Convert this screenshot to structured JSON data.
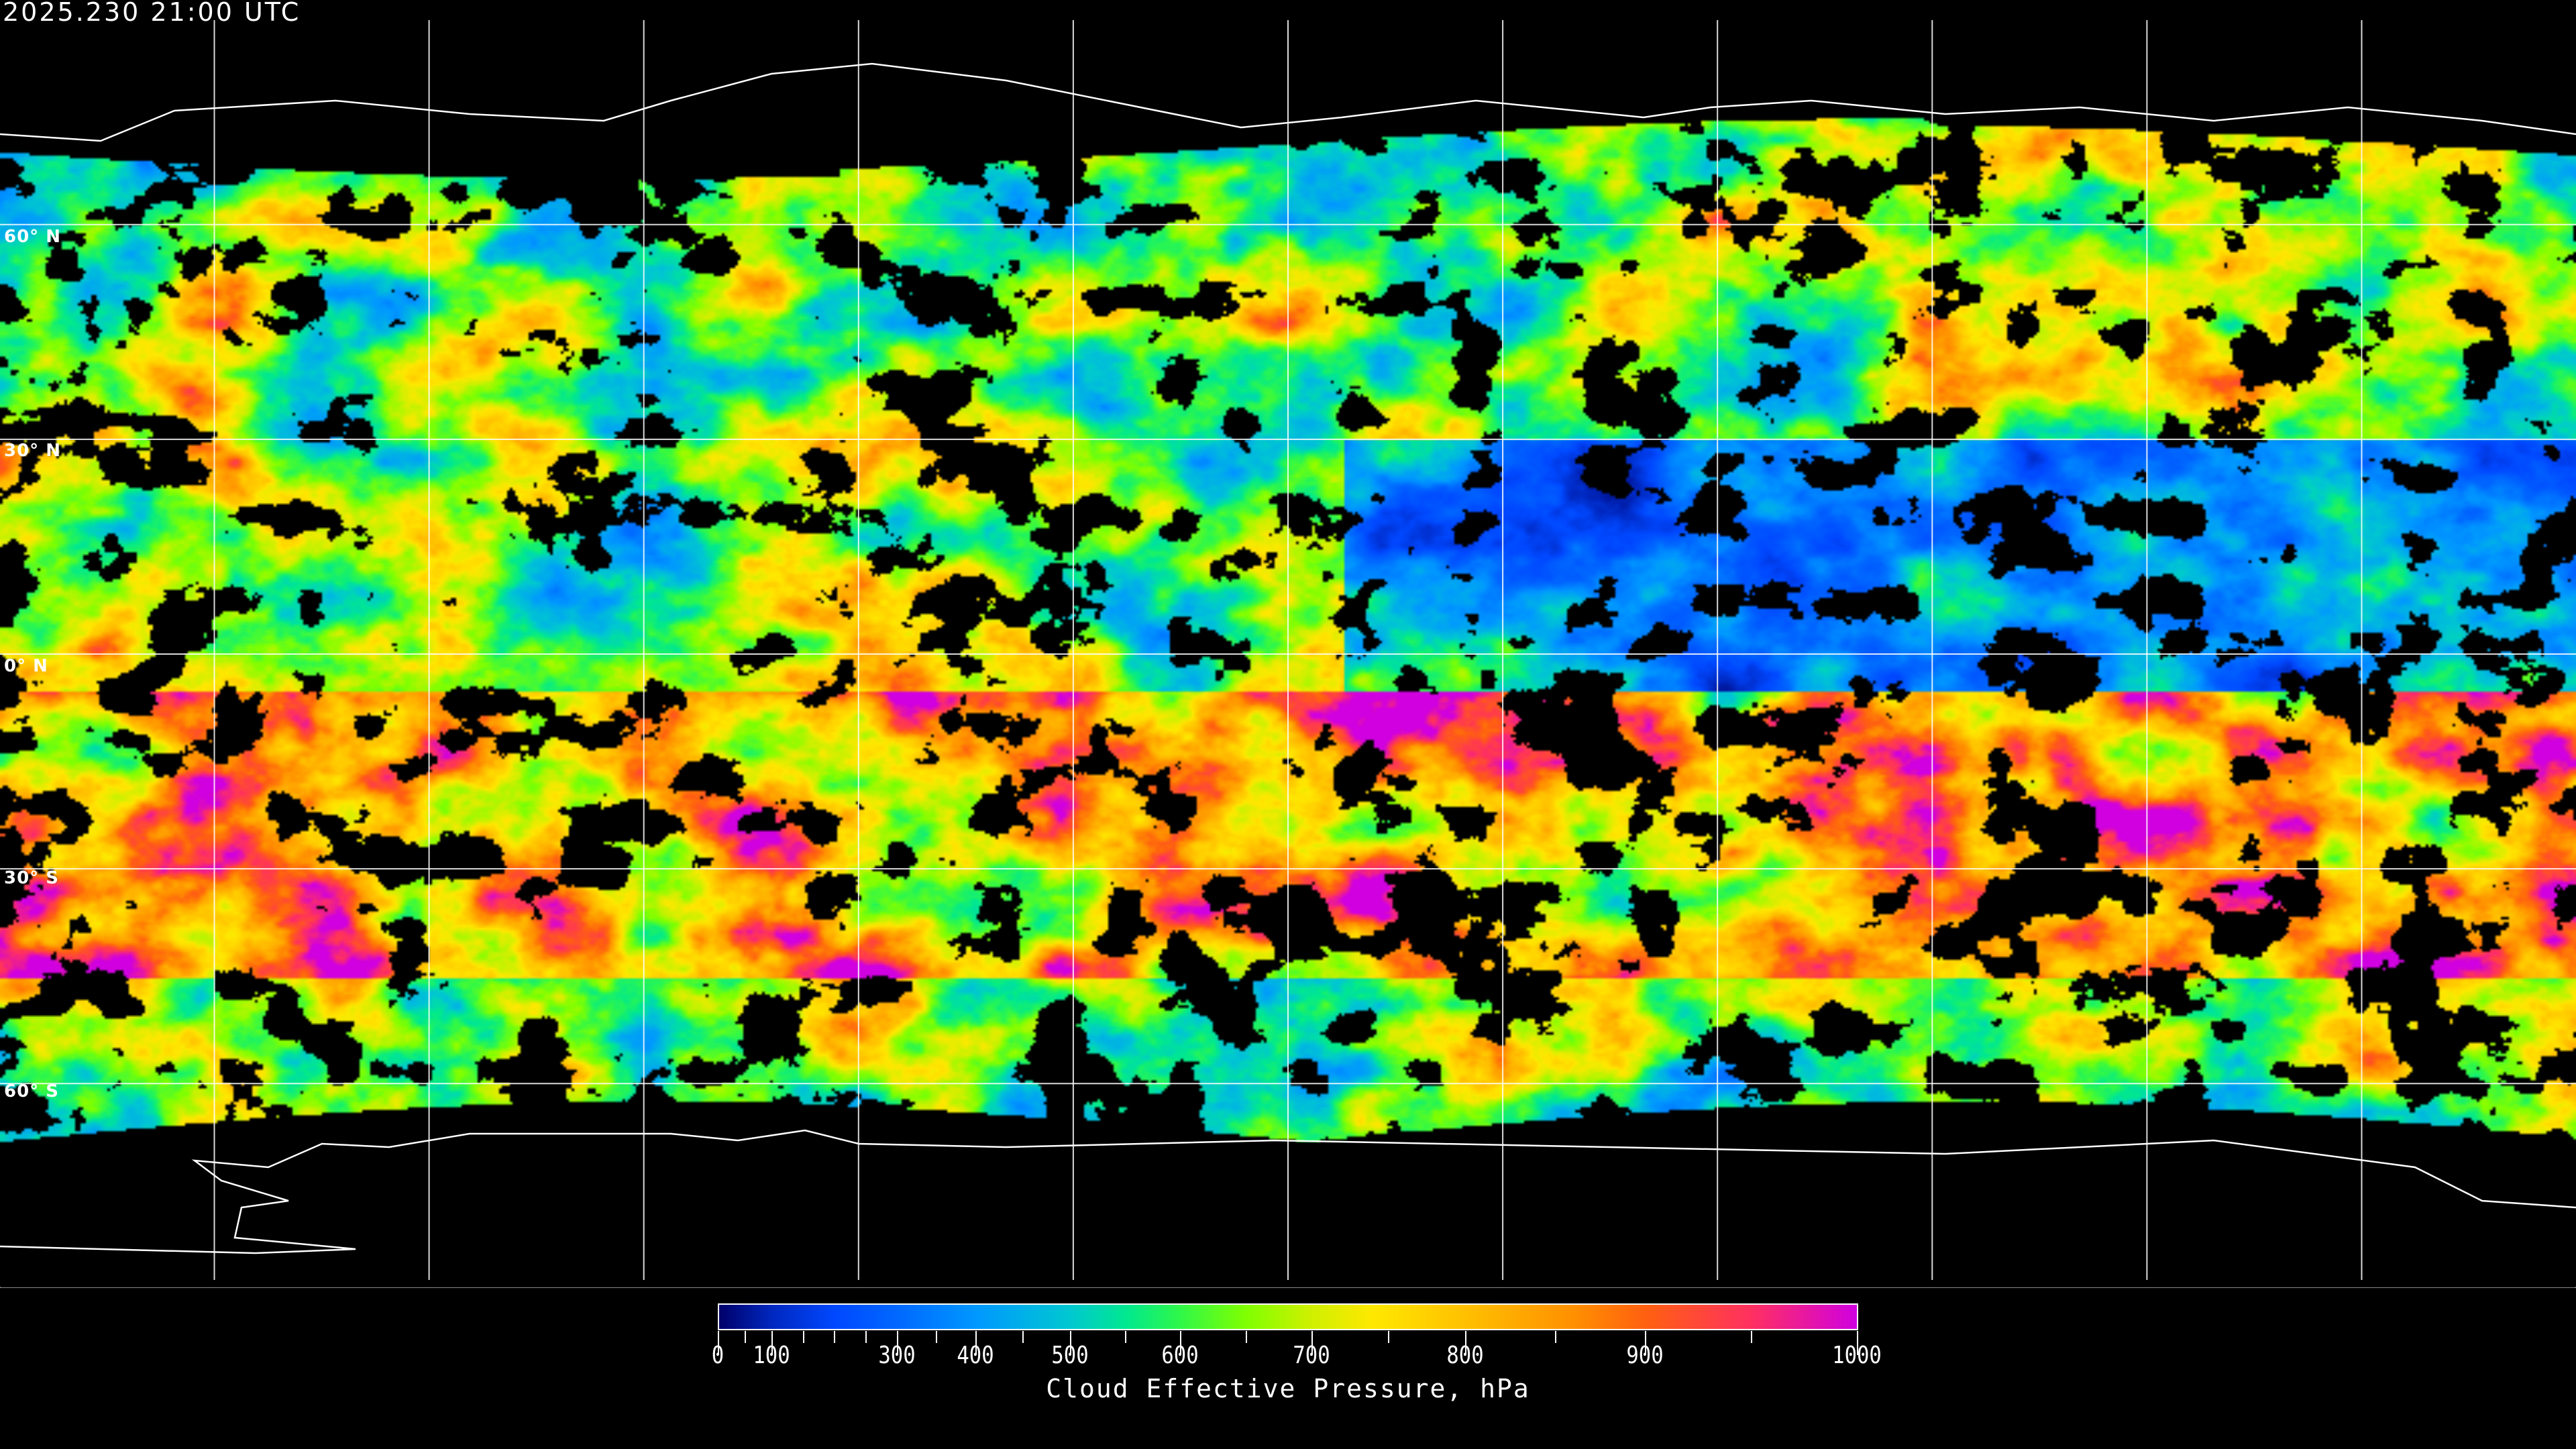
{
  "header": {
    "timestamp": "2025.230 21:00 UTC"
  },
  "map": {
    "projection": "equirectangular",
    "lat_labels": [
      "60° N",
      "30° N",
      "0° N",
      "30° S",
      "60° S"
    ],
    "lat_values": [
      60,
      30,
      0,
      -30,
      -60
    ],
    "lon_gridlines_deg": [
      -150,
      -120,
      -90,
      -60,
      -30,
      0,
      30,
      60,
      90,
      120,
      150
    ],
    "background_color": "#000000",
    "coastline_color": "#ffffff",
    "gridline_color": "#ffffff",
    "no_cloud_color": "#000000"
  },
  "colorbar": {
    "title": "Cloud Effective Pressure, hPa",
    "tick_labels": [
      "0",
      "100",
      "300",
      "400",
      "500",
      "600",
      "700",
      "800",
      "900",
      "1000"
    ],
    "tick_values": [
      0,
      100,
      300,
      400,
      500,
      600,
      700,
      800,
      900,
      1000
    ],
    "range": [
      0,
      1000
    ],
    "color_stops": [
      {
        "value": 0,
        "color": "#00006a"
      },
      {
        "value": 100,
        "color": "#0028c0"
      },
      {
        "value": 200,
        "color": "#0048ff"
      },
      {
        "value": 300,
        "color": "#0068ff"
      },
      {
        "value": 400,
        "color": "#0098ff"
      },
      {
        "value": 500,
        "color": "#00c8d0"
      },
      {
        "value": 550,
        "color": "#00e890"
      },
      {
        "value": 600,
        "color": "#30f848"
      },
      {
        "value": 650,
        "color": "#80ff00"
      },
      {
        "value": 700,
        "color": "#d0f000"
      },
      {
        "value": 740,
        "color": "#ffe800"
      },
      {
        "value": 800,
        "color": "#ffc000"
      },
      {
        "value": 860,
        "color": "#ff9000"
      },
      {
        "value": 900,
        "color": "#ff6010"
      },
      {
        "value": 950,
        "color": "#ff3060"
      },
      {
        "value": 1000,
        "color": "#d000e0"
      }
    ]
  }
}
